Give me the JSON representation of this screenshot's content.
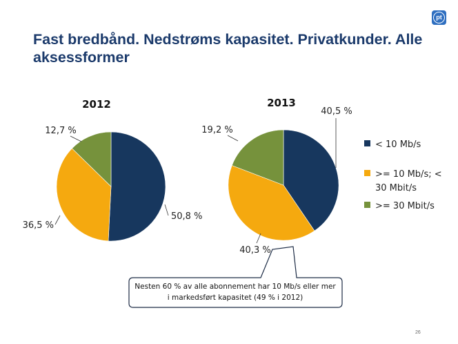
{
  "title": {
    "line1": "Fast bredbånd. Nedstrøms kapasitet. Privatkunder. Alle",
    "line2": "aksessformer"
  },
  "logo_text": "pt",
  "page_number": "26",
  "callout": {
    "line1": "Nesten 60 % av alle abonnement har 10 Mb/s eller mer",
    "line2": "i markedsført kapasitet (49 % i 2012)"
  },
  "colors": {
    "dark_blue": "#17375e",
    "orange": "#f5a90f",
    "green": "#76923c",
    "title": "#1b3a6b"
  },
  "chart_data": [
    {
      "type": "pie",
      "title": "2012",
      "slices": [
        {
          "name": "< 10 Mb/s",
          "value": 50.8,
          "label": "50,8 %",
          "color": "#17375e"
        },
        {
          "name": ">= 10 Mb/s; < 30 Mbit/s",
          "value": 36.5,
          "label": "36,5 %",
          "color": "#f5a90f"
        },
        {
          "name": ">= 30 Mbit/s",
          "value": 12.7,
          "label": "12,7 %",
          "color": "#76923c"
        }
      ]
    },
    {
      "type": "pie",
      "title": "2013",
      "slices": [
        {
          "name": "< 10 Mb/s",
          "value": 40.5,
          "label": "40,5 %",
          "color": "#17375e"
        },
        {
          "name": ">= 10 Mb/s; < 30 Mbit/s",
          "value": 40.3,
          "label": "40,3 %",
          "color": "#f5a90f"
        },
        {
          "name": ">= 30 Mbit/s",
          "value": 19.2,
          "label": "19,2 %",
          "color": "#76923c"
        }
      ]
    }
  ],
  "legend": [
    {
      "lines": [
        "< 10 Mb/s"
      ],
      "color": "#17375e"
    },
    {
      "lines": [
        ">= 10 Mb/s; <",
        "30 Mbit/s"
      ],
      "color": "#f5a90f"
    },
    {
      "lines": [
        ">= 30 Mbit/s"
      ],
      "color": "#76923c"
    }
  ]
}
